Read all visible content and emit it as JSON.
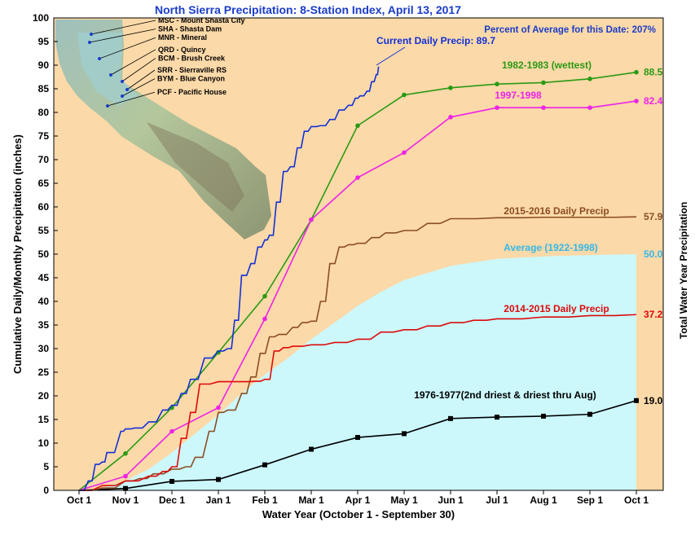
{
  "chart_data": {
    "type": "line",
    "title": "North Sierra Precipitation: 8-Station Index, April 13, 2017",
    "xlabel": "Water Year (October 1 - September 30)",
    "ylabel": "Cumulative Daily/Monthly Precipitation (inches)",
    "ylabel_right": "Total Water Year Precipitation",
    "xlim": [
      0,
      12
    ],
    "ylim": [
      0,
      100
    ],
    "y_ticks": [
      "0",
      "5",
      "10",
      "15",
      "20",
      "25",
      "30",
      "35",
      "40",
      "45",
      "50",
      "55",
      "60",
      "65",
      "70",
      "75",
      "80",
      "85",
      "90",
      "95",
      "100"
    ],
    "categories": [
      "Oct 1",
      "Nov 1",
      "Dec 1",
      "Jan 1",
      "Feb 1",
      "Mar 1",
      "Apr 1",
      "May 1",
      "Jun 1",
      "Jul 1",
      "Aug 1",
      "Sep 1",
      "Oct 1"
    ],
    "grid": false,
    "percent_note": "Percent of Average for this Date: 207%",
    "current_label": "Current Daily Precip: 89.7",
    "stations": [
      "MSC - Mount Shasta City",
      "SHA - Shasta Dam",
      "MNR - Mineral",
      "QRD - Quincy",
      "BCM - Brush Creek",
      "SRR - Sierraville RS",
      "BYM - Blue Canyon",
      "PCF - Pacific House"
    ],
    "series": [
      {
        "name": "Average (1922-1998)",
        "style": "area",
        "color": "#ccf8fc",
        "label_color": "#33b8e8",
        "total": "50.0",
        "x": [
          0,
          0.5,
          1,
          1.5,
          2,
          2.5,
          3,
          3.5,
          4,
          4.5,
          5,
          5.5,
          6,
          6.5,
          7,
          7.5,
          8,
          9,
          10,
          11,
          12
        ],
        "y": [
          0,
          0.5,
          2,
          4.5,
          8,
          12,
          16,
          20.5,
          24.5,
          28,
          32,
          35.5,
          39,
          42,
          44.5,
          46,
          47.5,
          49,
          49.5,
          49.8,
          50
        ]
      },
      {
        "name": "1982-1983 (wettest)",
        "style": "monthly",
        "color": "#2a9a14",
        "total": "88.5",
        "x": [
          0,
          1,
          2,
          3,
          4,
          5,
          6,
          7,
          8,
          9,
          10,
          11,
          12
        ],
        "y": [
          0,
          7.8,
          17.5,
          29.2,
          41.1,
          57.3,
          77.2,
          83.7,
          85.2,
          86.0,
          86.3,
          87.1,
          88.5
        ]
      },
      {
        "name": "1997-1998",
        "style": "monthly",
        "color": "#ee22e8",
        "total": "82.4",
        "x": [
          0,
          1,
          2,
          3,
          4,
          5,
          6,
          7,
          8,
          9,
          10,
          11,
          12
        ],
        "y": [
          0,
          3.0,
          12.5,
          17.5,
          36.3,
          57.3,
          66.2,
          71.5,
          79.0,
          81.0,
          81.0,
          81.0,
          82.4
        ]
      },
      {
        "name": "1976-1977(2nd driest & driest thru Aug)",
        "style": "monthly",
        "color": "#000000",
        "total": "19.0",
        "x": [
          0,
          1,
          2,
          3,
          4,
          5,
          6,
          7,
          8,
          9,
          10,
          11,
          12
        ],
        "y": [
          0,
          0.4,
          1.9,
          2.3,
          5.4,
          8.7,
          11.2,
          12.0,
          15.2,
          15.5,
          15.7,
          16.1,
          19.0
        ]
      },
      {
        "name": "2015-2016 Daily Precip",
        "style": "daily",
        "color": "#8a4e22",
        "total": "57.9",
        "x": [
          0,
          0.5,
          1.0,
          1.3,
          1.6,
          2.0,
          2.3,
          2.5,
          2.8,
          3.0,
          3.2,
          3.5,
          3.7,
          3.9,
          4.1,
          4.3,
          4.6,
          4.8,
          5.0,
          5.2,
          5.4,
          5.6,
          5.8,
          6.0,
          6.3,
          6.6,
          7.0,
          7.5,
          8.0,
          9.0,
          10.0,
          11.0,
          12.0
        ],
        "y": [
          0,
          0.5,
          2.0,
          2.5,
          3.5,
          4.5,
          5.0,
          7.0,
          12.5,
          16.5,
          17.0,
          20.5,
          24.0,
          29.0,
          32.5,
          33.0,
          34.5,
          35.5,
          35.8,
          40.0,
          48.0,
          51.5,
          52.0,
          52.3,
          53.5,
          54.5,
          55.0,
          56.5,
          57.5,
          57.7,
          57.8,
          57.8,
          57.9
        ]
      },
      {
        "name": "2014-2015 Daily Precip",
        "style": "daily",
        "color": "#dd0a0a",
        "total": "37.2",
        "x": [
          0,
          0.5,
          1.0,
          1.5,
          1.8,
          2.0,
          2.2,
          2.4,
          2.6,
          3.0,
          3.5,
          3.8,
          4.0,
          4.2,
          4.4,
          4.6,
          5.0,
          5.5,
          6.0,
          6.5,
          7.0,
          7.5,
          8.0,
          8.5,
          9.0,
          10.0,
          11.0,
          12.0
        ],
        "y": [
          0,
          1.0,
          2.0,
          3.0,
          4.0,
          5.0,
          11.0,
          16.5,
          22.5,
          23.0,
          23.0,
          23.1,
          23.5,
          29.5,
          30.2,
          30.5,
          30.8,
          31.3,
          32.0,
          33.5,
          34.0,
          34.8,
          35.5,
          36.0,
          36.3,
          36.7,
          37.0,
          37.2
        ]
      },
      {
        "name": "Current Daily Precip",
        "style": "daily",
        "color": "#1230d8",
        "total": "89.7",
        "x": [
          0,
          0.2,
          0.35,
          0.5,
          0.6,
          0.9,
          1.0,
          1.2,
          1.5,
          1.8,
          2.0,
          2.2,
          2.4,
          2.7,
          3.0,
          3.2,
          3.35,
          3.5,
          3.7,
          3.85,
          4.0,
          4.1,
          4.25,
          4.4,
          4.55,
          4.7,
          4.85,
          5.0,
          5.2,
          5.4,
          5.6,
          5.8,
          5.95,
          6.05,
          6.2,
          6.3,
          6.4,
          6.45
        ],
        "y": [
          0,
          2.0,
          5.5,
          6.0,
          8.0,
          12.5,
          13.0,
          13.2,
          14.5,
          17.0,
          18.0,
          20.5,
          23.5,
          28.0,
          29.5,
          30.0,
          36.0,
          45.5,
          48.0,
          51.5,
          53.0,
          54.0,
          61.0,
          67.5,
          68.5,
          72.5,
          76.0,
          77.0,
          77.2,
          78.5,
          80.5,
          81.5,
          83.0,
          83.5,
          84.5,
          86.5,
          88.0,
          89.7
        ]
      }
    ]
  }
}
